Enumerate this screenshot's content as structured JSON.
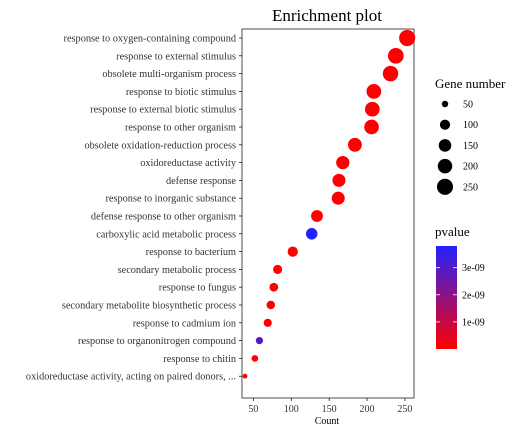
{
  "chart_data": {
    "type": "scatter",
    "title": "Enrichment plot",
    "xlabel": "Count",
    "ylabel": "",
    "xlim": [
      35,
      262
    ],
    "xticks": [
      50,
      100,
      150,
      200,
      250
    ],
    "grid": false,
    "categories": [
      "response to oxygen-containing compound",
      "response to external stimulus",
      "obsolete multi-organism process",
      "response to biotic stimulus",
      "response to external biotic stimulus",
      "response to other organism",
      "obsolete oxidation-reduction process",
      "oxidoreductase activity",
      "defense response",
      "response to inorganic substance",
      "defense response to other organism",
      "carboxylic acid metabolic process",
      "response to bacterium",
      "secondary metabolic process",
      "response to fungus",
      "secondary metabolite biosynthetic process",
      "response to cadmium ion",
      "response to organonitrogen compound",
      "response to chitin",
      "oxidoreductase activity, acting on paired donors, ..."
    ],
    "points": [
      {
        "term": "response to oxygen-containing compound",
        "count": 253,
        "gene_number": 253,
        "pvalue": 1e-11
      },
      {
        "term": "response to external stimulus",
        "count": 238,
        "gene_number": 238,
        "pvalue": 1e-11
      },
      {
        "term": "obsolete multi-organism process",
        "count": 231,
        "gene_number": 231,
        "pvalue": 1e-11
      },
      {
        "term": "response to biotic stimulus",
        "count": 209,
        "gene_number": 209,
        "pvalue": 1e-11
      },
      {
        "term": "response to external biotic stimulus",
        "count": 207,
        "gene_number": 207,
        "pvalue": 1e-11
      },
      {
        "term": "response to other organism",
        "count": 206,
        "gene_number": 206,
        "pvalue": 1e-11
      },
      {
        "term": "obsolete oxidation-reduction process",
        "count": 184,
        "gene_number": 184,
        "pvalue": 1e-11
      },
      {
        "term": "oxidoreductase activity",
        "count": 168,
        "gene_number": 168,
        "pvalue": 1e-11
      },
      {
        "term": "defense response",
        "count": 163,
        "gene_number": 163,
        "pvalue": 1e-11
      },
      {
        "term": "response to inorganic substance",
        "count": 162,
        "gene_number": 162,
        "pvalue": 1e-11
      },
      {
        "term": "defense response to other organism",
        "count": 134,
        "gene_number": 134,
        "pvalue": 1e-11
      },
      {
        "term": "carboxylic acid metabolic process",
        "count": 127,
        "gene_number": 127,
        "pvalue": 3.8e-09
      },
      {
        "term": "response to bacterium",
        "count": 102,
        "gene_number": 102,
        "pvalue": 1e-11
      },
      {
        "term": "secondary metabolic process",
        "count": 82,
        "gene_number": 82,
        "pvalue": 1e-11
      },
      {
        "term": "response to fungus",
        "count": 77,
        "gene_number": 77,
        "pvalue": 1e-11
      },
      {
        "term": "secondary metabolite biosynthetic process",
        "count": 73,
        "gene_number": 73,
        "pvalue": 1e-11
      },
      {
        "term": "response to cadmium ion",
        "count": 69,
        "gene_number": 69,
        "pvalue": 1e-11
      },
      {
        "term": "response to organonitrogen compound",
        "count": 58,
        "gene_number": 58,
        "pvalue": 2.9e-09
      },
      {
        "term": "response to chitin",
        "count": 52,
        "gene_number": 52,
        "pvalue": 1e-11
      },
      {
        "term": "oxidoreductase activity, acting on paired donors, ...",
        "count": 39,
        "gene_number": 39,
        "pvalue": 1e-11
      }
    ],
    "size_legend": {
      "title": "Gene number",
      "values": [
        50,
        100,
        150,
        200,
        250
      ],
      "labels": [
        "50",
        "100",
        "150",
        "200",
        "250"
      ]
    },
    "color_legend": {
      "title": "pvalue",
      "range": [
        0,
        3.8e-09
      ],
      "ticks": [
        1e-09,
        2e-09,
        3e-09
      ],
      "tick_labels": [
        "1e-09",
        "2e-09",
        "3e-09"
      ],
      "low_color": "#ff0000",
      "high_color": "#2222ff"
    },
    "legend_position": "right"
  }
}
